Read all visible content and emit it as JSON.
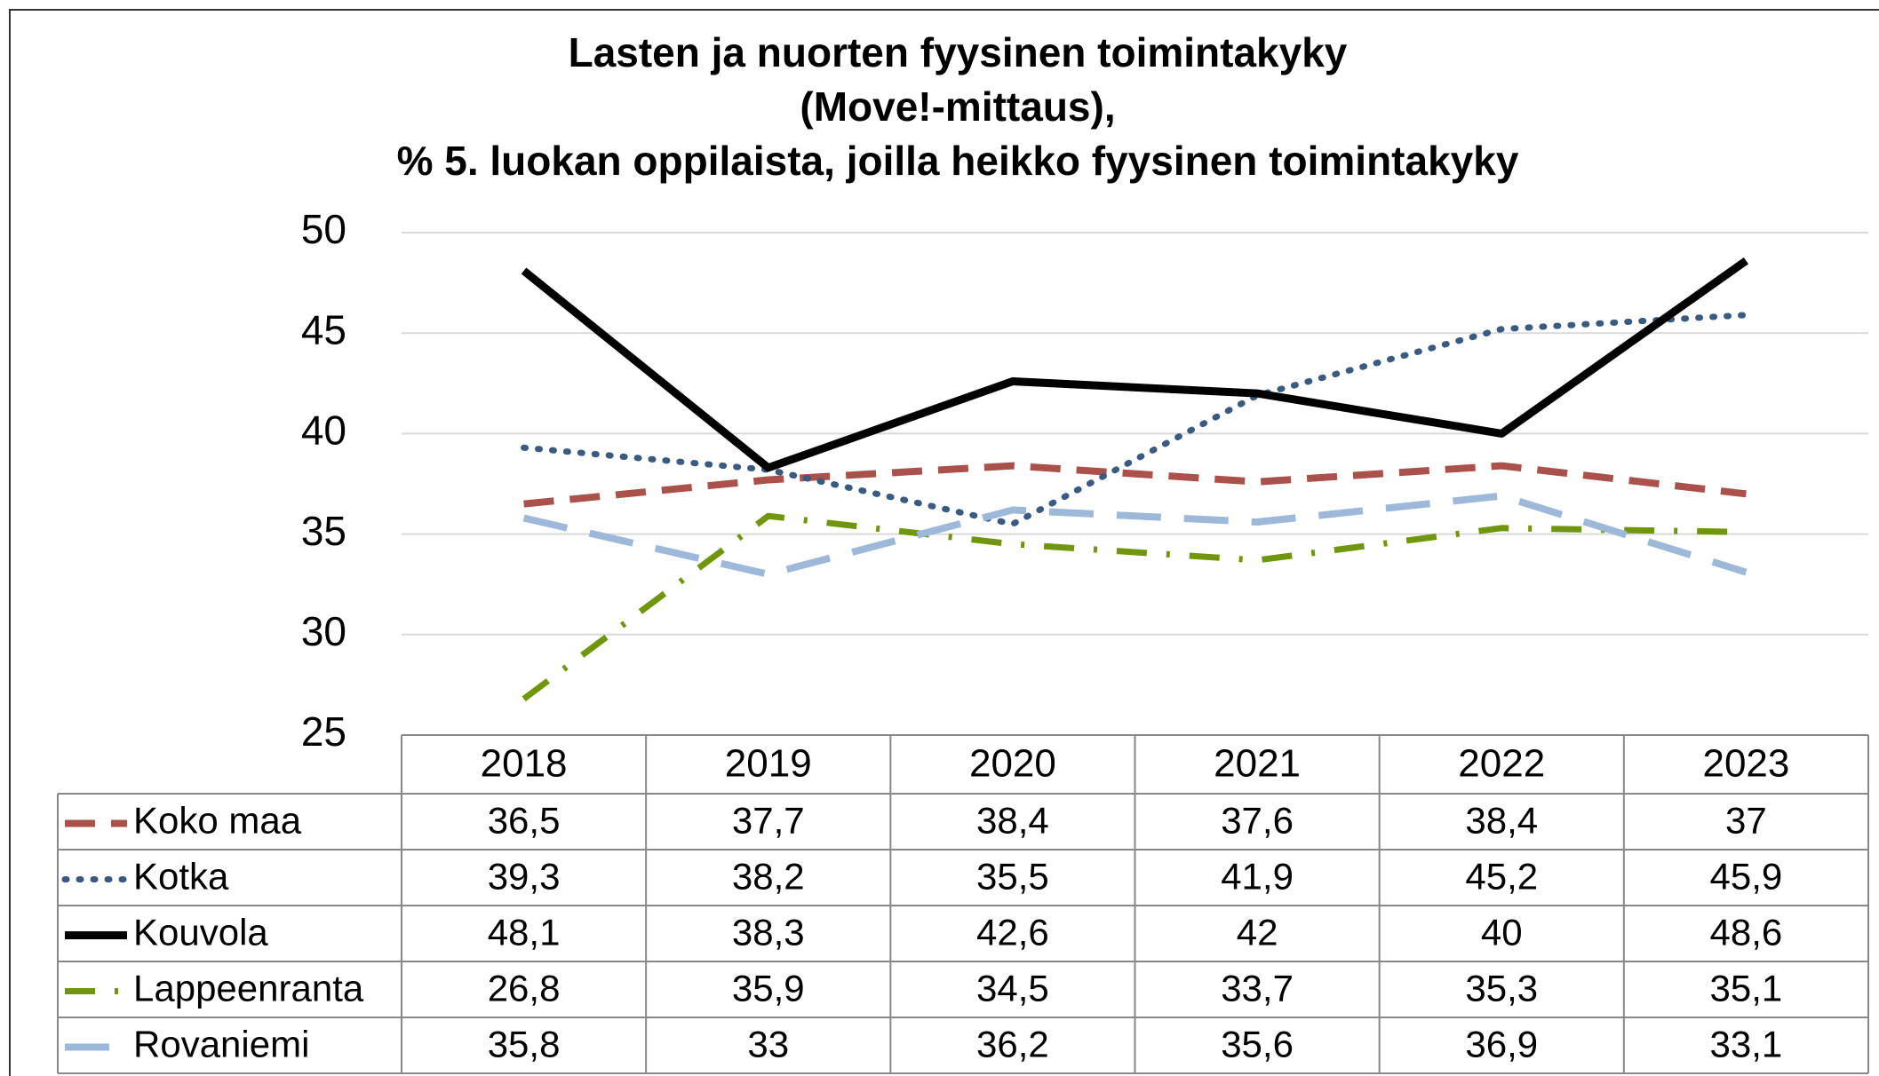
{
  "chart_data": {
    "type": "line",
    "title": [
      "Lasten ja nuorten fyysinen toimintakyky",
      "(Move!-mittaus),",
      "% 5. luokan oppilaista, joilla heikko fyysinen toimintakyky"
    ],
    "categories": [
      "2018",
      "2019",
      "2020",
      "2021",
      "2022",
      "2023"
    ],
    "ylim": [
      25,
      50
    ],
    "yticks": [
      25,
      30,
      35,
      40,
      45,
      50
    ],
    "grid": true,
    "series": [
      {
        "name": "Koko maa",
        "color": "#a9514a",
        "style": "dashed",
        "values": [
          36.5,
          37.7,
          38.4,
          37.6,
          38.4,
          37
        ],
        "value_labels": [
          "36,5",
          "37,7",
          "38,4",
          "37,6",
          "38,4",
          "37"
        ]
      },
      {
        "name": "Kotka",
        "color": "#3b5a80",
        "style": "dotted",
        "values": [
          39.3,
          38.2,
          35.5,
          41.9,
          45.2,
          45.9
        ],
        "value_labels": [
          "39,3",
          "38,2",
          "35,5",
          "41,9",
          "45,2",
          "45,9"
        ]
      },
      {
        "name": "Kouvola",
        "color": "#000000",
        "style": "solid",
        "values": [
          48.1,
          38.3,
          42.6,
          42,
          40,
          48.6
        ],
        "value_labels": [
          "48,1",
          "38,3",
          "42,6",
          "42",
          "40",
          "48,6"
        ]
      },
      {
        "name": "Lappeenranta",
        "color": "#6f960c",
        "style": "dashdot",
        "values": [
          26.8,
          35.9,
          34.5,
          33.7,
          35.3,
          35.1
        ],
        "value_labels": [
          "26,8",
          "35,9",
          "34,5",
          "33,7",
          "35,3",
          "35,1"
        ]
      },
      {
        "name": "Rovaniemi",
        "color": "#9db8d9",
        "style": "longdash",
        "values": [
          35.8,
          33,
          36.2,
          35.6,
          36.9,
          33.1
        ],
        "value_labels": [
          "35,8",
          "33",
          "36,2",
          "35,6",
          "36,9",
          "33,1"
        ]
      }
    ]
  }
}
